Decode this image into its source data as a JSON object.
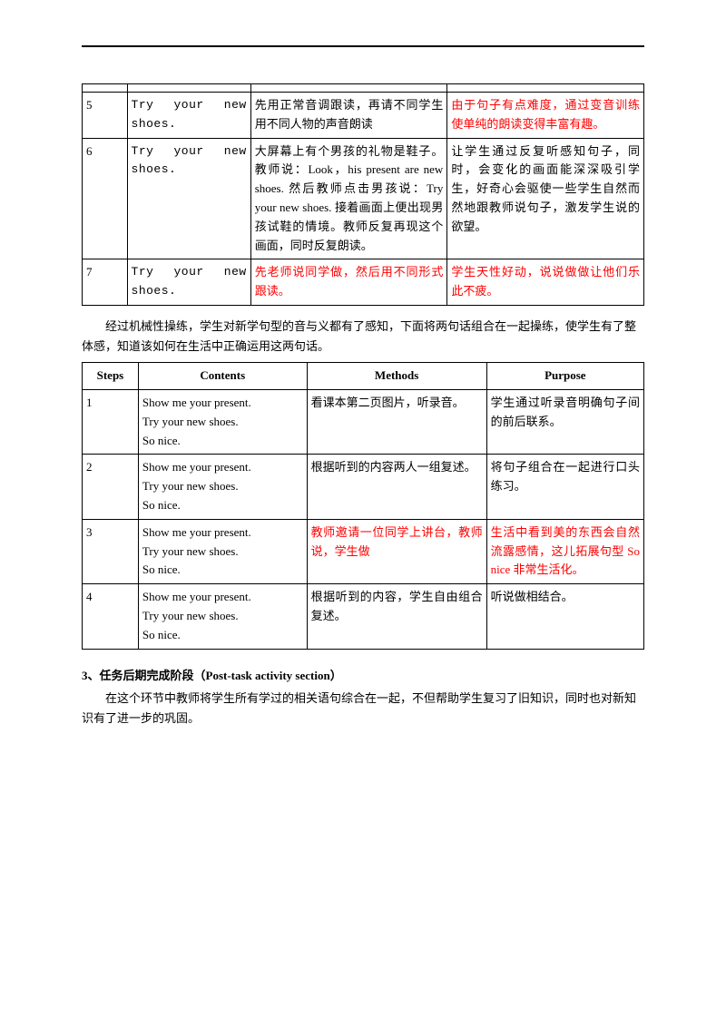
{
  "table1": {
    "rows": [
      {
        "num": "5",
        "content": "Try your new shoes.",
        "method": "先用正常音调跟读，再请不同学生用不同人物的声音朗读",
        "purpose": "由于句子有点难度，通过变音训练使单纯的朗读变得丰富有趣。",
        "method_red": false,
        "purpose_red": true
      },
      {
        "num": "6",
        "content": "Try your new shoes.",
        "method": "大屏幕上有个男孩的礼物是鞋子。教师说：Look，his present are new shoes. 然后教师点击男孩说：Try your new shoes. 接着画面上便出现男孩试鞋的情境。教师反复再现这个画面，同时反复朗读。",
        "purpose": "让学生通过反复听感知句子，同时，会变化的画面能深深吸引学生，好奇心会驱使一些学生自然而然地跟教师说句子，激发学生说的欲望。",
        "method_red": false,
        "purpose_red": false
      },
      {
        "num": "7",
        "content": "Try your new shoes.",
        "method": "先老师说同学做，然后用不同形式跟读。",
        "purpose": "学生天性好动，说说做做让他们乐此不疲。",
        "method_red": true,
        "purpose_red": true
      }
    ]
  },
  "mid_para": "经过机械性操练，学生对新学句型的音与义都有了感知，下面将两句话组合在一起操练，使学生有了整体感，知道该如何在生活中正确运用这两句话。",
  "table2": {
    "headers": {
      "steps": "Steps",
      "contents": "Contents",
      "methods": "Methods",
      "purpose": "Purpose"
    },
    "rows": [
      {
        "num": "1",
        "content": [
          "Show me your present.",
          "Try your new shoes.",
          "So nice."
        ],
        "method": "看课本第二页图片，听录音。",
        "purpose": "学生通过听录音明确句子间的前后联系。",
        "method_red": false,
        "purpose_red": false
      },
      {
        "num": "2",
        "content": [
          "Show me your present.",
          "Try your new shoes.",
          "So nice."
        ],
        "method": "根据听到的内容两人一组复述。",
        "purpose": "将句子组合在一起进行口头练习。",
        "method_red": false,
        "purpose_red": false
      },
      {
        "num": "3",
        "content": [
          "Show me your present.",
          "Try your new shoes.",
          "So nice."
        ],
        "method": "教师邀请一位同学上讲台，教师说，学生做",
        "purpose": "生活中看到美的东西会自然流露感情，这儿拓展句型 So nice 非常生活化。",
        "method_red": true,
        "purpose_red": true
      },
      {
        "num": "4",
        "content": [
          "Show me your present.",
          "Try your new shoes.",
          "So nice."
        ],
        "method": "根据听到的内容，学生自由组合复述。",
        "purpose": "听说做相结合。",
        "method_red": false,
        "purpose_red": false
      }
    ]
  },
  "heading3": "3、任务后期完成阶段（Post-task activity section）",
  "tail_para": "在这个环节中教师将学生所有学过的相关语句综合在一起，不但帮助学生复习了旧知识，同时也对新知识有了进一步的巩固。"
}
